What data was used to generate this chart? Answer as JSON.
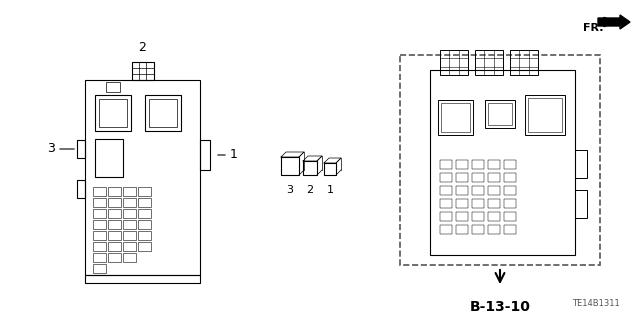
{
  "bg_color": "#ffffff",
  "line_color": "#000000",
  "dashed_box_color": "#555555",
  "title_code": "B-13-10",
  "part_number": "TE14B1311",
  "fr_label": "FR.",
  "labels": {
    "left_unit_top": "2",
    "left_unit_right": "1",
    "left_unit_left": "3",
    "small_parts_3": "3",
    "small_parts_2": "2",
    "small_parts_1": "1"
  }
}
